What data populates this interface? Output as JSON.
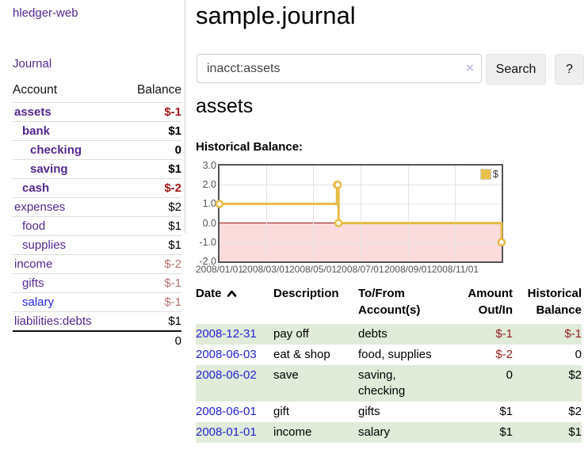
{
  "app": {
    "title": "hledger-web"
  },
  "sidebar": {
    "journal_link": "Journal",
    "accounts_table": {
      "headers": {
        "account": "Account",
        "balance": "Balance"
      },
      "rows": [
        {
          "name": "assets",
          "balance": "$-1",
          "depth": 0,
          "bold": true,
          "value_class": "neg"
        },
        {
          "name": "bank",
          "balance": "$1",
          "depth": 1,
          "bold": true,
          "value_class": "pos"
        },
        {
          "name": "checking",
          "balance": "0",
          "depth": 2,
          "bold": true,
          "value_class": "pos"
        },
        {
          "name": "saving",
          "balance": "$1",
          "depth": 2,
          "bold": true,
          "value_class": "pos"
        },
        {
          "name": "cash",
          "balance": "$-2",
          "depth": 1,
          "bold": true,
          "value_class": "neg"
        },
        {
          "name": "expenses",
          "balance": "$2",
          "depth": 0,
          "bold": false,
          "value_class": "pos"
        },
        {
          "name": "food",
          "balance": "$1",
          "depth": 1,
          "bold": false,
          "value_class": "pos"
        },
        {
          "name": "supplies",
          "balance": "$1",
          "depth": 1,
          "bold": false,
          "value_class": "pos"
        },
        {
          "name": "income",
          "balance": "$-2",
          "depth": 0,
          "bold": false,
          "value_class": "neg-muted"
        },
        {
          "name": "gifts",
          "balance": "$-1",
          "depth": 1,
          "bold": false,
          "value_class": "neg-muted"
        },
        {
          "name": "salary",
          "balance": "$-1",
          "depth": 1,
          "bold": false,
          "value_class": "neg-muted",
          "link_class": "hover"
        },
        {
          "name": "liabilities:debts",
          "balance": "$1",
          "depth": 0,
          "bold": false,
          "value_class": "pos"
        }
      ],
      "total": "0"
    }
  },
  "main": {
    "title": "sample.journal",
    "search": {
      "value": "inacct:assets",
      "clear_icon": "×",
      "button": "Search",
      "help_button": "?"
    },
    "account_heading": "assets",
    "chart_heading": "Historical Balance:"
  },
  "chart_data": {
    "type": "line",
    "title": "Historical Balance",
    "series": [
      {
        "name": "$",
        "step": true,
        "points": [
          [
            "2008-01-01",
            1
          ],
          [
            "2008-06-01",
            2
          ],
          [
            "2008-06-02",
            2
          ],
          [
            "2008-06-03",
            0
          ],
          [
            "2008-12-31",
            -1
          ]
        ]
      }
    ],
    "ylim": [
      -2,
      3
    ],
    "yticks": [
      "3.0",
      "2.0",
      "1.0",
      "0.0",
      "-1.0",
      "-2.0"
    ],
    "xticks": [
      "2008/01/01",
      "2008/03/01",
      "2008/05/01",
      "2008/07/01",
      "2008/09/01",
      "2008/11/01"
    ],
    "legend_position": "top-right",
    "grid": true,
    "colors": {
      "line": "#e6bc45",
      "negative_fill": "#fbdbdb",
      "zero_line": "#8f1414",
      "border": "#545454"
    }
  },
  "register": {
    "headers": {
      "date": "Date",
      "description": "Description",
      "account": "To/From Account(s)",
      "amount": "Amount Out/In",
      "balance": "Historical Balance"
    },
    "rows": [
      {
        "date": "2008-12-31",
        "description": "pay off",
        "account": "debts",
        "amount": "$-1",
        "balance": "$-1"
      },
      {
        "date": "2008-06-03",
        "description": "eat & shop",
        "account": "food, supplies",
        "amount": "$-2",
        "balance": "0"
      },
      {
        "date": "2008-06-02",
        "description": "save",
        "account": "saving, checking",
        "amount": "0",
        "balance": "$2"
      },
      {
        "date": "2008-06-01",
        "description": "gift",
        "account": "gifts",
        "amount": "$1",
        "balance": "$2"
      },
      {
        "date": "2008-01-01",
        "description": "income",
        "account": "salary",
        "amount": "$1",
        "balance": "$1"
      }
    ]
  }
}
